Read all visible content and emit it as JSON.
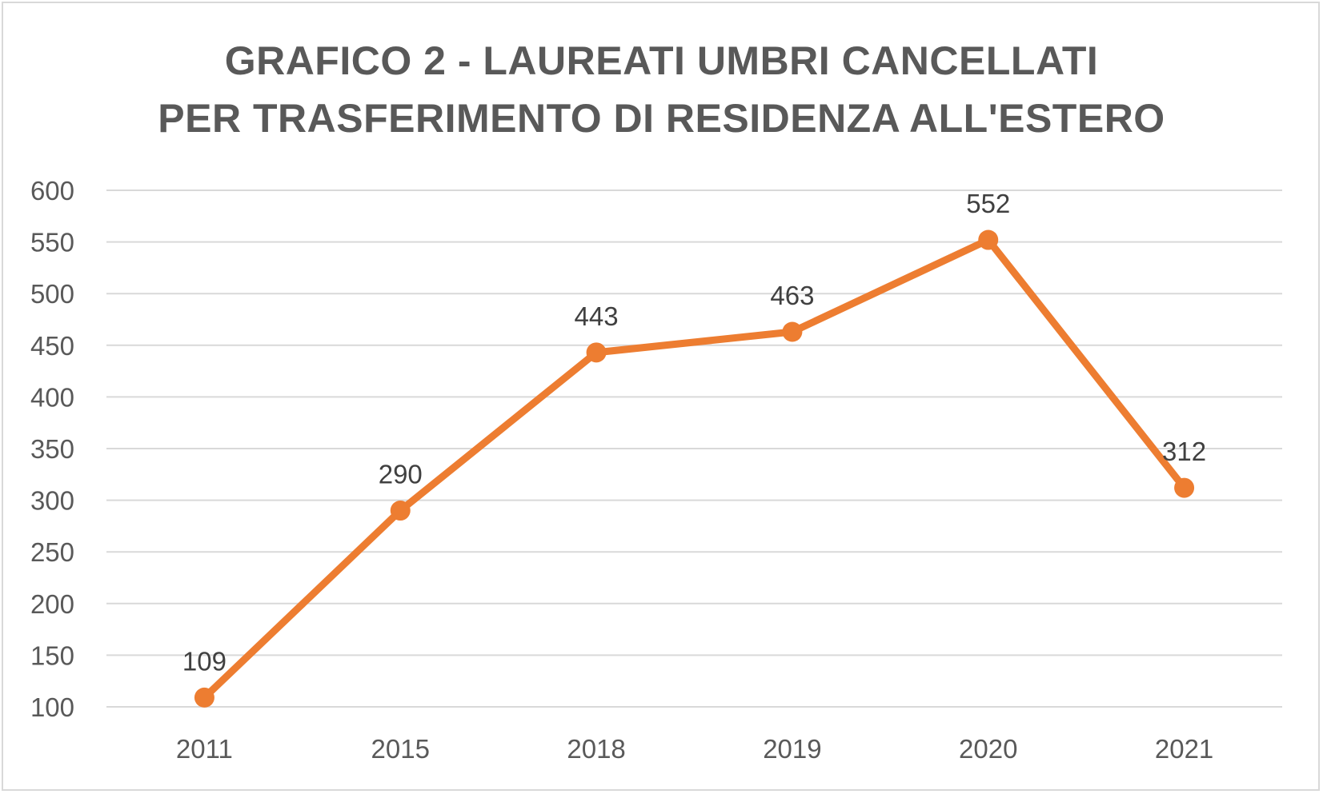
{
  "chart_data": {
    "type": "line",
    "title": [
      "GRAFICO 2 - LAUREATI UMBRI CANCELLATI",
      "PER TRASFERIMENTO DI RESIDENZA ALL'ESTERO"
    ],
    "xlabel": "",
    "ylabel": "",
    "categories": [
      "2011",
      "2015",
      "2018",
      "2019",
      "2020",
      "2021"
    ],
    "series": [
      {
        "values": [
          109,
          290,
          443,
          463,
          552,
          312
        ],
        "color": "#ed7d31"
      }
    ],
    "ylim": [
      100,
      600
    ],
    "yticks": [
      100,
      150,
      200,
      250,
      300,
      350,
      400,
      450,
      500,
      550,
      600
    ],
    "grid": true,
    "legend": "none",
    "colors": {
      "line": "#ed7d31",
      "grid": "#d9d9d9",
      "title": "#595959",
      "tick": "#595959",
      "data_label": "#404040",
      "border": "#d9d9d9"
    }
  }
}
